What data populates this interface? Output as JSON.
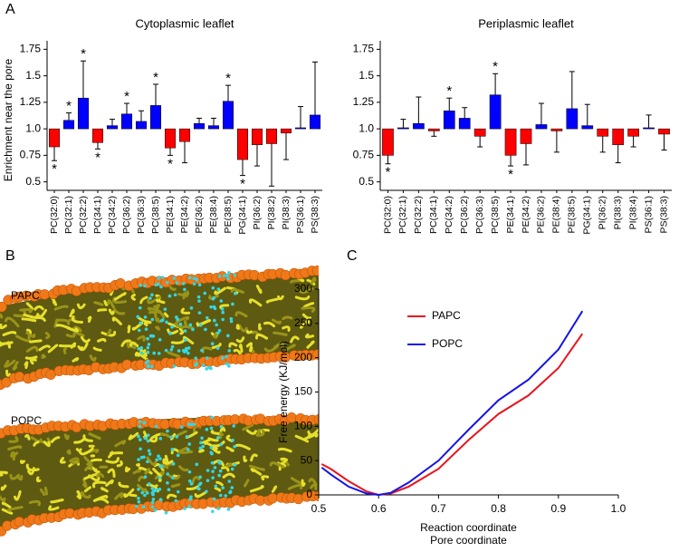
{
  "panel_labels": [
    "A",
    "B",
    "C"
  ],
  "images": {
    "labels": [
      "PAPC",
      "POPC"
    ]
  },
  "chart_data": [
    {
      "type": "bar",
      "title": "Cytoplasmic leaflet",
      "ylabel": "Enrichment near the pore",
      "categories": [
        "PC(32:0)",
        "PC(32:1)",
        "PC(32:2)",
        "PC(34:1)",
        "PC(34:2)",
        "PC(36:2)",
        "PC(36:3)",
        "PC(38:5)",
        "PE(34:1)",
        "PE(34:2)",
        "PE(36:2)",
        "PE(38:4)",
        "PE(38:5)",
        "PG(34:1)",
        "PI(36:2)",
        "PI(38:2)",
        "PI(38:3)",
        "PS(36:1)",
        "PS(38:3)"
      ],
      "values": [
        0.83,
        1.08,
        1.29,
        0.87,
        1.03,
        1.14,
        1.07,
        1.22,
        0.82,
        0.88,
        1.05,
        1.03,
        1.26,
        0.71,
        0.85,
        0.86,
        0.96,
        1.01,
        1.13
      ],
      "errors": [
        0.13,
        0.07,
        0.35,
        0.06,
        0.06,
        0.1,
        0.1,
        0.2,
        0.07,
        0.2,
        0.05,
        0.07,
        0.15,
        0.15,
        0.2,
        0.4,
        0.25,
        0.2,
        0.5
      ],
      "significance": [
        "*",
        "*",
        "*",
        "*",
        null,
        "*",
        null,
        "*",
        "*",
        null,
        null,
        null,
        "*",
        "*",
        null,
        null,
        null,
        null,
        null
      ],
      "bar_base": 1,
      "color_above": "#0000ff",
      "color_below": "#ff0000",
      "ylim": [
        0.42,
        1.83
      ],
      "yticks": [
        0.5,
        0.75,
        {
          "value": 1.0,
          "label": "1.0"
        },
        1.25,
        1.5,
        1.75
      ]
    },
    {
      "type": "bar",
      "title": "Periplasmic leaflet",
      "categories": [
        "PC(32:0)",
        "PC(32:1)",
        "PC(32:2)",
        "PC(34:1)",
        "PC(34:2)",
        "PC(36:2)",
        "PC(36:3)",
        "PC(38:5)",
        "PE(34:1)",
        "PE(34:2)",
        "PE(36:2)",
        "PE(38:4)",
        "PE(38:5)",
        "PG(34:1)",
        "PI(36:2)",
        "PI(38:3)",
        "PI(38:4)",
        "PS(36:1)",
        "PS(38:3)"
      ],
      "values": [
        0.75,
        1.01,
        1.05,
        0.98,
        1.17,
        1.1,
        0.93,
        1.32,
        0.75,
        0.86,
        1.04,
        0.98,
        1.19,
        1.03,
        0.93,
        0.85,
        0.93,
        1.01,
        0.95
      ],
      "errors": [
        0.08,
        0.08,
        0.25,
        0.05,
        0.12,
        0.1,
        0.1,
        0.2,
        0.1,
        0.2,
        0.2,
        0.2,
        0.35,
        0.2,
        0.15,
        0.17,
        0.1,
        0.12,
        0.15
      ],
      "significance": [
        "*",
        null,
        null,
        null,
        "*",
        null,
        null,
        "*",
        "*",
        null,
        null,
        null,
        null,
        null,
        null,
        null,
        null,
        null,
        null
      ],
      "bar_base": 1,
      "color_above": "#0000ff",
      "color_below": "#ff0000",
      "ylim": [
        0.42,
        1.83
      ],
      "yticks": [
        0.5,
        0.75,
        {
          "value": 1.0,
          "label": "1.0"
        },
        1.25,
        1.5,
        1.75
      ]
    },
    {
      "type": "line",
      "xlabel": "Reaction coordinate",
      "xlabel_secondary": "Pore coordinate",
      "ylabel": "Free energy (KJ/mol)",
      "x": [
        0.505,
        0.52,
        0.55,
        0.58,
        0.6,
        0.62,
        0.65,
        0.7,
        0.75,
        0.8,
        0.85,
        0.9,
        0.94
      ],
      "series": [
        {
          "name": "PAPC",
          "color": "#e8141c",
          "values": [
            45,
            38,
            20,
            5,
            0,
            2,
            12,
            38,
            80,
            118,
            145,
            185,
            235
          ]
        },
        {
          "name": "POPC",
          "color": "#1414e6",
          "values": [
            40,
            30,
            12,
            2,
            0,
            3,
            18,
            50,
            95,
            138,
            168,
            212,
            268
          ]
        }
      ],
      "xlim": [
        0.5,
        1.0
      ],
      "xticks": [
        0.5,
        0.6,
        0.7,
        0.8,
        0.9,
        {
          "value": 1.0,
          "label": "1.0"
        }
      ],
      "ylim": [
        0,
        300
      ],
      "yticks": [
        0,
        50,
        100,
        150,
        200,
        250,
        300
      ],
      "legend": "upper left"
    }
  ]
}
